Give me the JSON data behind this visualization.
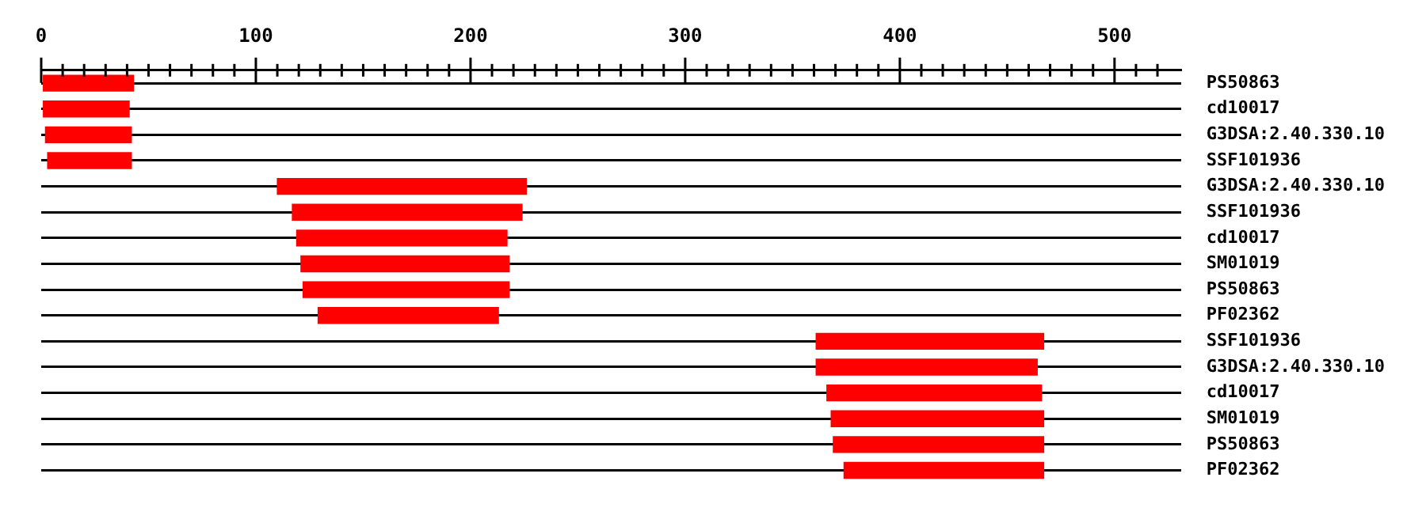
{
  "chart_data": {
    "type": "bar",
    "orientation": "horizontal",
    "categories": [
      "PS50863",
      "cd10017",
      "G3DSA:2.40.330.10",
      "SSF101936",
      "G3DSA:2.40.330.10",
      "SSF101936",
      "cd10017",
      "SM01019",
      "PS50863",
      "PF02362",
      "SSF101936",
      "G3DSA:2.40.330.10",
      "cd10017",
      "SM01019",
      "PS50863",
      "PF02362"
    ],
    "base": [
      1,
      1,
      2,
      3,
      110,
      117,
      119,
      121,
      122,
      129,
      361,
      361,
      366,
      368,
      369,
      374
    ],
    "values": [
      42,
      40,
      40,
      39,
      116,
      107,
      98,
      97,
      96,
      84,
      106,
      103,
      100,
      99,
      98,
      93
    ],
    "color": "#ff0000",
    "xlim": [
      0,
      531
    ],
    "xticks": [
      0,
      {
        "value": 10,
        "label": null
      },
      {
        "value": 20,
        "label": null
      },
      {
        "value": 30,
        "label": null
      },
      {
        "value": 40,
        "label": null
      },
      {
        "value": 50,
        "label": null
      },
      {
        "value": 60,
        "label": null
      },
      {
        "value": 70,
        "label": null
      },
      {
        "value": 80,
        "label": null
      },
      {
        "value": 90,
        "label": null
      },
      100,
      {
        "value": 110,
        "label": null
      },
      {
        "value": 120,
        "label": null
      },
      {
        "value": 130,
        "label": null
      },
      {
        "value": 140,
        "label": null
      },
      {
        "value": 150,
        "label": null
      },
      {
        "value": 160,
        "label": null
      },
      {
        "value": 170,
        "label": null
      },
      {
        "value": 180,
        "label": null
      },
      {
        "value": 190,
        "label": null
      },
      200,
      {
        "value": 210,
        "label": null
      },
      {
        "value": 220,
        "label": null
      },
      {
        "value": 230,
        "label": null
      },
      {
        "value": 240,
        "label": null
      },
      {
        "value": 250,
        "label": null
      },
      {
        "value": 260,
        "label": null
      },
      {
        "value": 270,
        "label": null
      },
      {
        "value": 280,
        "label": null
      },
      {
        "value": 290,
        "label": null
      },
      300,
      {
        "value": 310,
        "label": null
      },
      {
        "value": 320,
        "label": null
      },
      {
        "value": 330,
        "label": null
      },
      {
        "value": 340,
        "label": null
      },
      {
        "value": 350,
        "label": null
      },
      {
        "value": 360,
        "label": null
      },
      {
        "value": 370,
        "label": null
      },
      {
        "value": 380,
        "label": null
      },
      {
        "value": 390,
        "label": null
      },
      400,
      {
        "value": 410,
        "label": null
      },
      {
        "value": 420,
        "label": null
      },
      {
        "value": 430,
        "label": null
      },
      {
        "value": 440,
        "label": null
      },
      {
        "value": 450,
        "label": null
      },
      {
        "value": 460,
        "label": null
      },
      {
        "value": 470,
        "label": null
      },
      {
        "value": 480,
        "label": null
      },
      {
        "value": 490,
        "label": null
      },
      500,
      {
        "value": 510,
        "label": null
      },
      {
        "value": 520,
        "label": null
      }
    ],
    "grid": "y",
    "legend": false
  }
}
